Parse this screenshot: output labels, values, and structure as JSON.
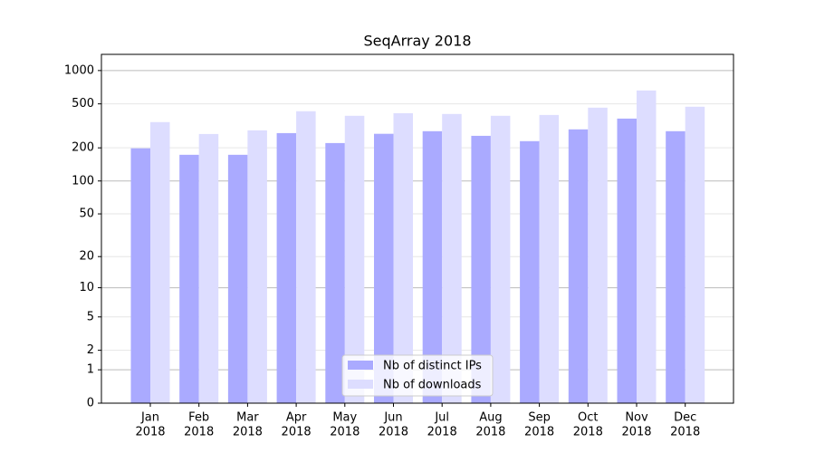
{
  "chart_data": {
    "type": "bar",
    "title": "SeqArray 2018",
    "categories": [
      [
        "Jan",
        "2018"
      ],
      [
        "Feb",
        "2018"
      ],
      [
        "Mar",
        "2018"
      ],
      [
        "Apr",
        "2018"
      ],
      [
        "May",
        "2018"
      ],
      [
        "Jun",
        "2018"
      ],
      [
        "Jul",
        "2018"
      ],
      [
        "Aug",
        "2018"
      ],
      [
        "Sep",
        "2018"
      ],
      [
        "Oct",
        "2018"
      ],
      [
        "Nov",
        "2018"
      ],
      [
        "Dec",
        "2018"
      ]
    ],
    "series": [
      {
        "name": "Nb of distinct IPs",
        "color": "#aaaaff",
        "values": [
          198,
          173,
          173,
          272,
          221,
          268,
          283,
          257,
          230,
          294,
          368,
          283
        ]
      },
      {
        "name": "Nb of downloads",
        "color": "#ddddff",
        "values": [
          342,
          267,
          288,
          429,
          390,
          412,
          405,
          390,
          397,
          462,
          661,
          471
        ]
      }
    ],
    "yscale": "log1p",
    "ylim": [
      0,
      1400
    ],
    "yticks": [
      0,
      1,
      2,
      5,
      10,
      20,
      50,
      100,
      200,
      500,
      1000
    ],
    "grid": true,
    "legend": "lower center"
  }
}
